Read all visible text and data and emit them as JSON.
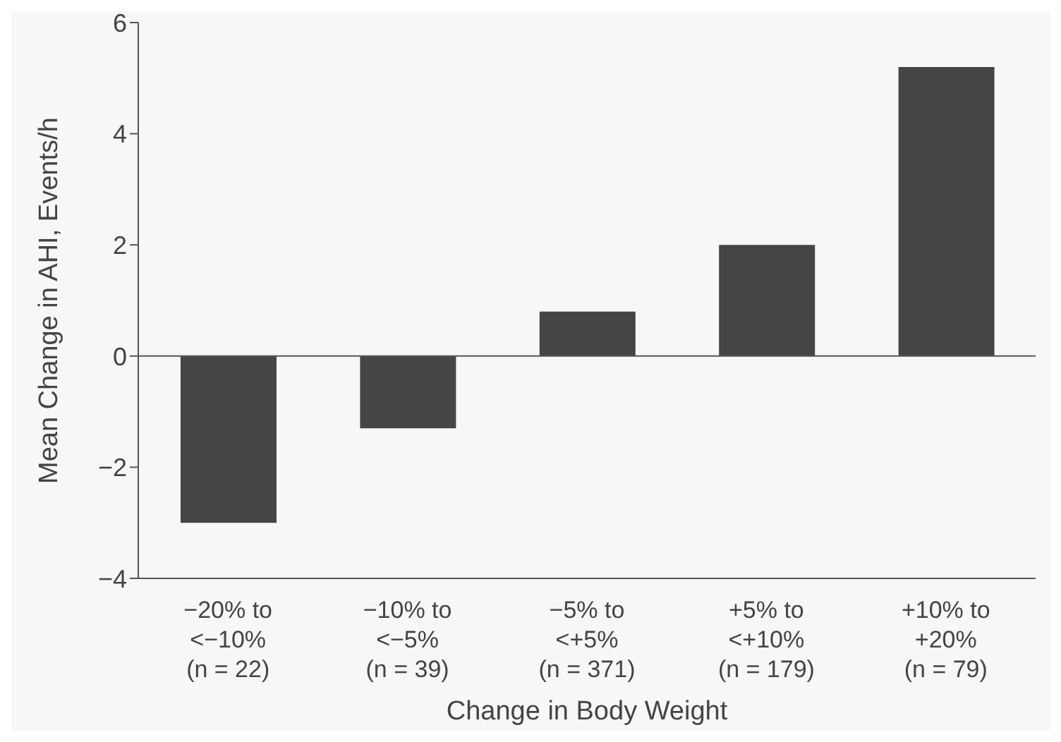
{
  "chart_data": {
    "type": "bar",
    "xlabel": "Change in Body Weight",
    "ylabel": "Mean Change in AHI, Events/h",
    "categories": [
      "−20% to\n<−10%\n(n = 22)",
      "−10% to\n<−5%\n(n = 39)",
      "−5% to\n<+5%\n(n = 371)",
      "+5% to\n<+10%\n(n = 179)",
      "+10% to\n+20%\n(n = 79)"
    ],
    "values": [
      -3.0,
      -1.3,
      0.8,
      2.0,
      5.2
    ],
    "color": "#454545",
    "ylim": [
      -4,
      6
    ],
    "yticks": [
      -4,
      -2,
      0,
      2,
      4,
      6
    ],
    "grid": false,
    "ref_lines": [
      {
        "axis": "y",
        "value": 0,
        "color": "#555555"
      }
    ]
  }
}
